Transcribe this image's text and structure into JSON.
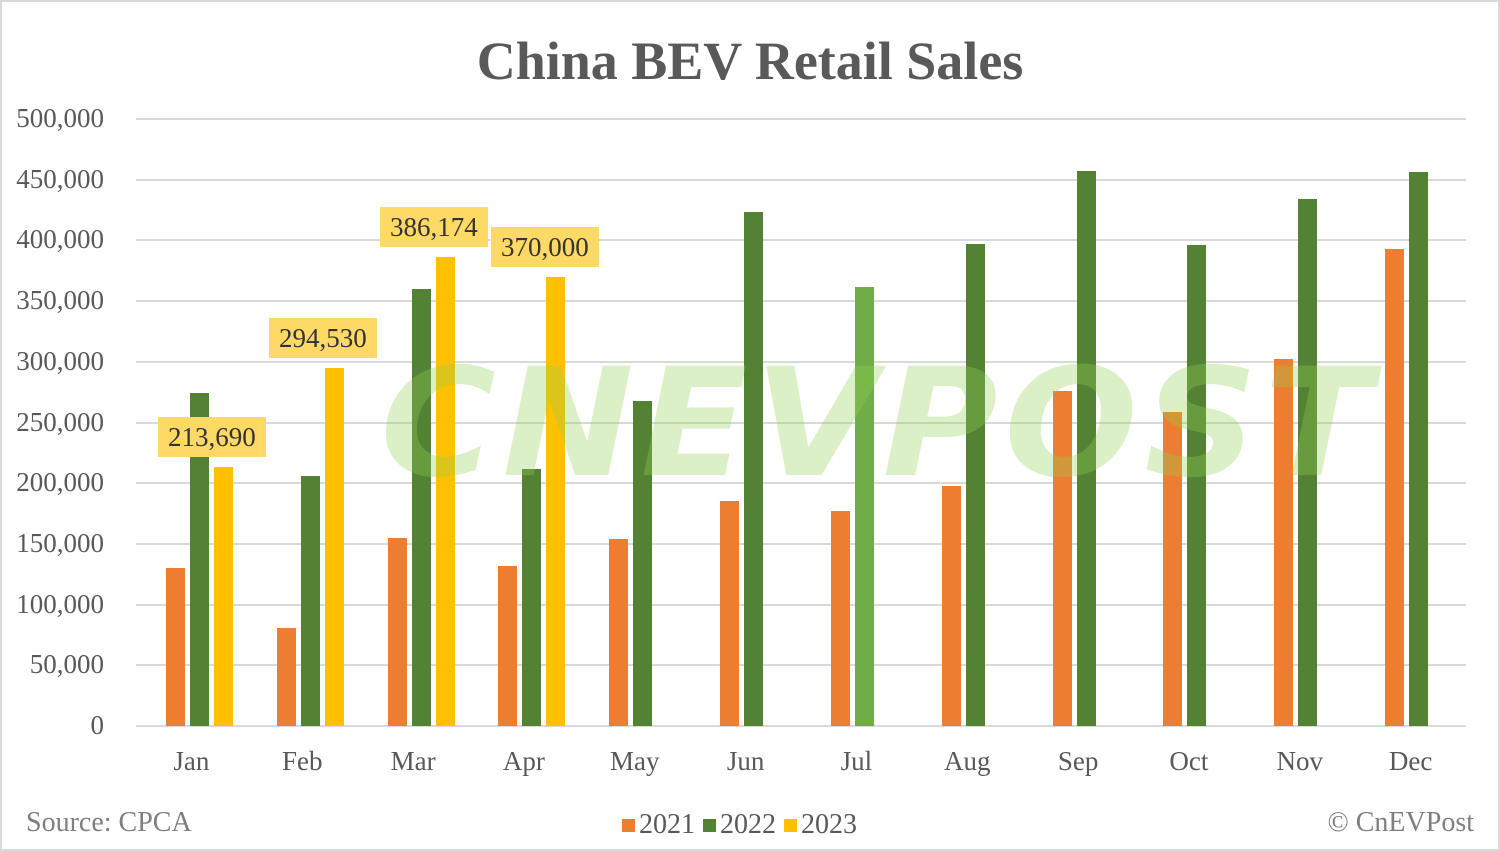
{
  "chart_data": {
    "type": "bar",
    "title": "China BEV Retail Sales",
    "xlabel": "",
    "ylabel": "",
    "ylim": [
      0,
      500000
    ],
    "yticks": [
      0,
      50000,
      100000,
      150000,
      200000,
      250000,
      300000,
      350000,
      400000,
      450000,
      500000
    ],
    "ytick_labels": [
      "0",
      "50,000",
      "100,000",
      "150,000",
      "200,000",
      "250,000",
      "300,000",
      "350,000",
      "400,000",
      "450,000",
      "500,000"
    ],
    "grid": true,
    "legend_position": "bottom",
    "categories": [
      "Jan",
      "Feb",
      "Mar",
      "Apr",
      "May",
      "Jun",
      "Jul",
      "Aug",
      "Sep",
      "Oct",
      "Nov",
      "Dec"
    ],
    "series": [
      {
        "name": "2021",
        "color": "#ed7d31",
        "values": [
          130000,
          81000,
          155000,
          132000,
          154000,
          185000,
          177000,
          198000,
          276000,
          259000,
          302000,
          393000
        ]
      },
      {
        "name": "2022",
        "color": "#548235",
        "values": [
          274000,
          206000,
          360000,
          212000,
          268000,
          423000,
          362000,
          397000,
          457000,
          396000,
          434000,
          456000
        ]
      },
      {
        "name": "2023",
        "color": "#ffc000",
        "values": [
          213690,
          294530,
          386174,
          370000,
          null,
          null,
          null,
          null,
          null,
          null,
          null,
          null
        ]
      }
    ],
    "annotations": [
      {
        "category": "Jan",
        "series": "2023",
        "text": "213,690"
      },
      {
        "category": "Feb",
        "series": "2023",
        "text": "294,530"
      },
      {
        "category": "Mar",
        "series": "2023",
        "text": "386,174"
      },
      {
        "category": "Apr",
        "series": "2023",
        "text": "370,000"
      }
    ],
    "highlight": {
      "category": "Jul",
      "series": "2022",
      "color": "#70ad47"
    }
  },
  "footer": {
    "source": "Source: CPCA",
    "copyright": "© CnEVPost"
  },
  "watermark": "CNEVPOST",
  "colors": {
    "title": "#595959",
    "grid": "#d9d9d9",
    "label_bg": "#ffd966"
  }
}
